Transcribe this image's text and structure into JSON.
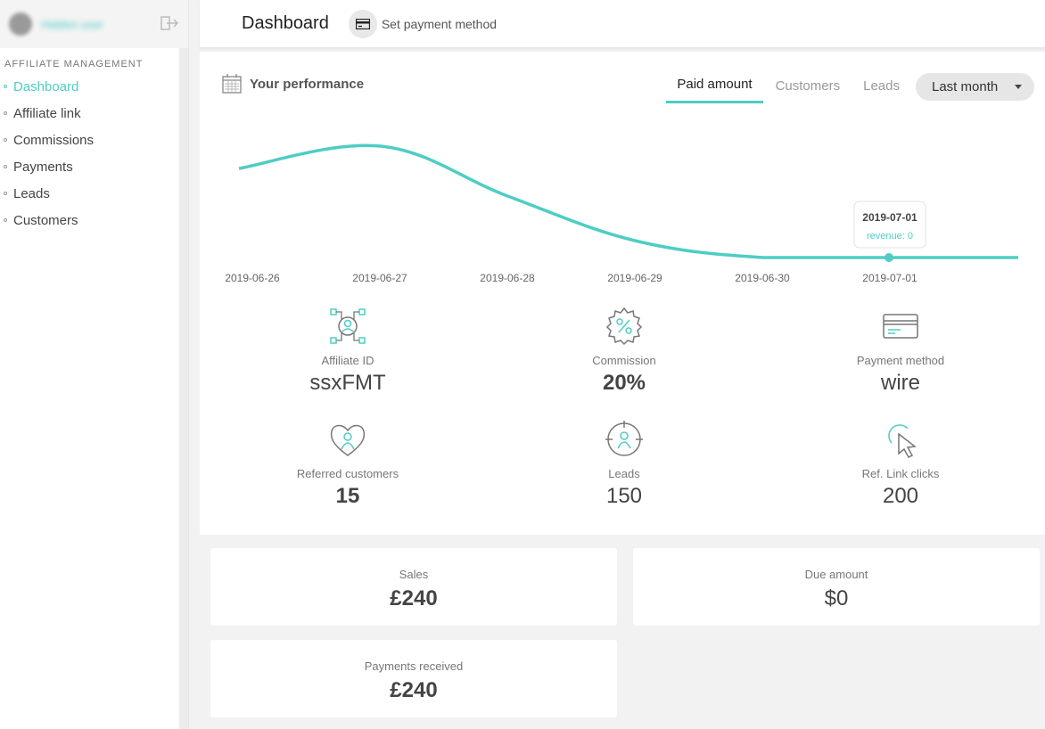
{
  "sidebar": {
    "user_name": "Hidden user",
    "section_title": "AFFILIATE MANAGEMENT",
    "items": [
      {
        "label": "Dashboard",
        "active": true
      },
      {
        "label": "Affiliate link"
      },
      {
        "label": "Commissions"
      },
      {
        "label": "Payments"
      },
      {
        "label": "Leads"
      },
      {
        "label": "Customers"
      }
    ]
  },
  "header": {
    "title": "Dashboard",
    "pay_label": "Set payment method"
  },
  "performance": {
    "title": "Your performance",
    "tabs": [
      "Paid amount",
      "Customers",
      "Leads"
    ],
    "period": "Last month",
    "tooltip": {
      "date": "2019-07-01",
      "text": "revenue: 0"
    }
  },
  "chart_data": {
    "type": "line",
    "x": [
      "2019-06-26",
      "2019-06-27",
      "2019-06-28",
      "2019-06-29",
      "2019-06-30",
      "2019-07-01"
    ],
    "values": [
      80,
      100,
      55,
      15,
      0,
      0
    ],
    "accent": "#4ecdc4"
  },
  "stats": [
    {
      "label": "Affiliate ID",
      "value": "ssxFMT",
      "icon": "affiliate-network-icon"
    },
    {
      "label": "Commission",
      "value": "20%",
      "icon": "percent-badge-icon"
    },
    {
      "label": "Payment method",
      "value": "wire",
      "icon": "credit-card-icon"
    },
    {
      "label": "Referred customers",
      "value": "15",
      "icon": "heart-person-icon"
    },
    {
      "label": "Leads",
      "value": "150",
      "icon": "target-person-icon"
    },
    {
      "label": "Ref. Link clicks",
      "value": "200",
      "icon": "cursor-click-icon"
    }
  ],
  "cards": {
    "sales": {
      "label": "Sales",
      "value": "£240"
    },
    "due": {
      "label": "Due amount",
      "value": "$0"
    },
    "payments": {
      "label": "Payments received",
      "value": "£240"
    }
  }
}
